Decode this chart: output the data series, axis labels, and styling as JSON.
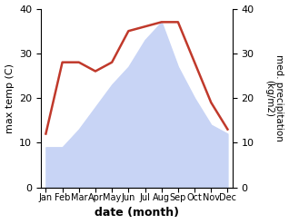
{
  "months": [
    "Jan",
    "Feb",
    "Mar",
    "Apr",
    "May",
    "Jun",
    "Jul",
    "Aug",
    "Sep",
    "Oct",
    "Nov",
    "Dec"
  ],
  "temp": [
    9,
    9,
    13,
    18,
    23,
    27,
    33,
    37,
    27,
    20,
    14,
    12
  ],
  "precip": [
    12,
    28,
    28,
    26,
    28,
    35,
    36,
    37,
    37,
    28,
    19,
    13
  ],
  "temp_fill_color": "#c8d4f5",
  "precip_color": "#c0392b",
  "xlabel": "date (month)",
  "ylabel_left": "max temp (C)",
  "ylabel_right": "med. precipitation\n(kg/m2)",
  "ylim": [
    0,
    40
  ],
  "yticks": [
    0,
    10,
    20,
    30,
    40
  ],
  "background_color": "#ffffff"
}
